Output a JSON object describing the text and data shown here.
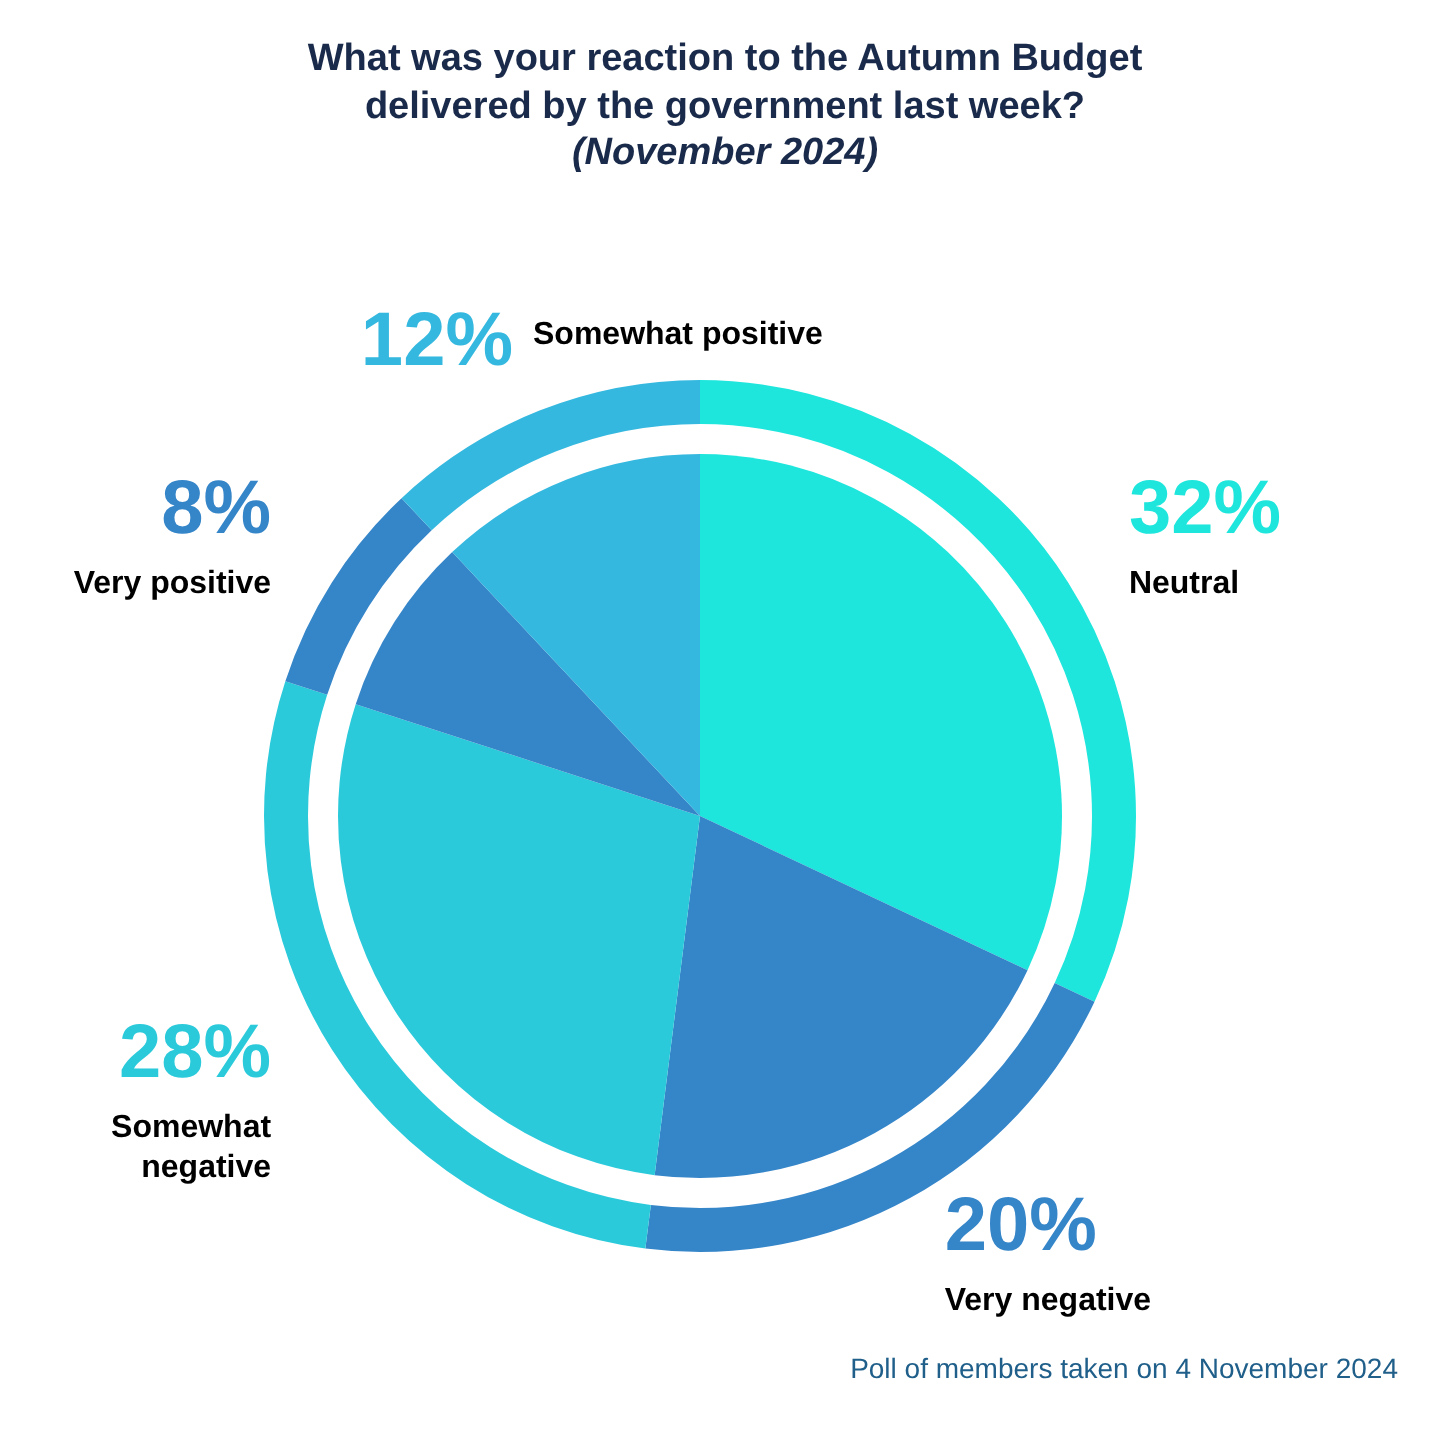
{
  "chart_data": {
    "type": "pie",
    "title": "What was your reaction to the Autumn Budget\ndelivered by the government last week?",
    "subtitle": "(November 2024)",
    "categories": [
      "Neutral",
      "Very negative",
      "Somewhat negative",
      "Very positive",
      "Somewhat positive"
    ],
    "series": [
      {
        "values": [
          32,
          20,
          28,
          8,
          12
        ],
        "colors": [
          "#1ee6dc",
          "#3585c9",
          "#2bcadb",
          "#3585c9",
          "#35b8df"
        ]
      },
      {
        "values": [
          32,
          20,
          28,
          8,
          12
        ],
        "colors": [
          "#1ee6dc",
          "#3585c9",
          "#2bcadb",
          "#3585c9",
          "#35b8df"
        ]
      }
    ],
    "value_labels": [
      "32%",
      "20%",
      "28%",
      "8%",
      "12%"
    ],
    "legend": false,
    "annotations": [
      "Poll of members taken on 4 November 2024"
    ]
  }
}
